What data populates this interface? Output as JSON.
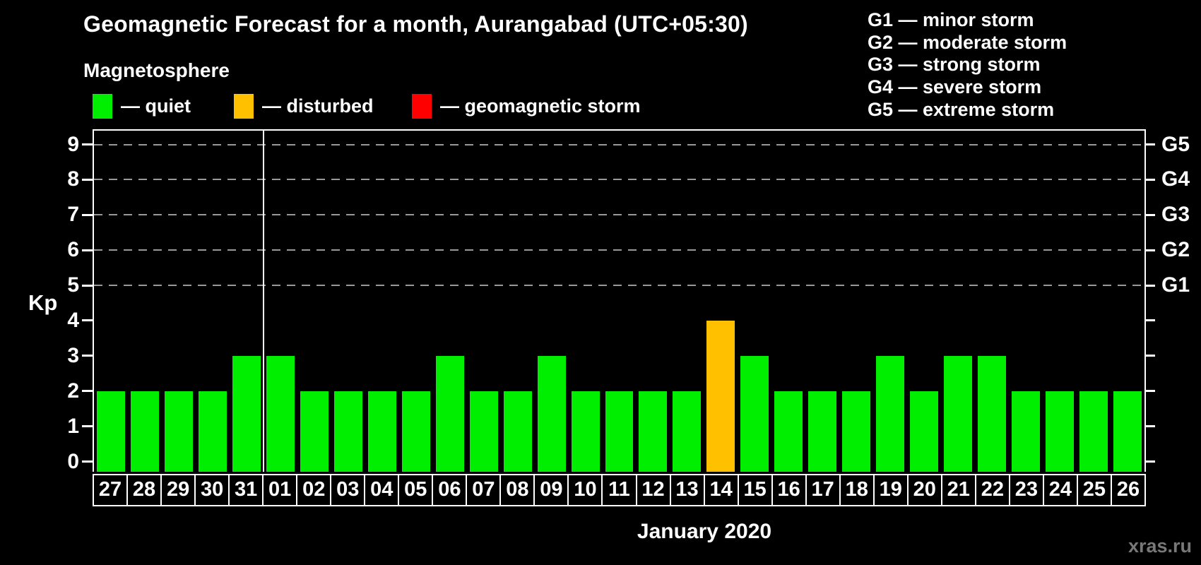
{
  "title": "Geomagnetic Forecast for a month, Aurangabad (UTC+05:30)",
  "subtitle": "Magnetosphere",
  "legend": [
    {
      "label": "— quiet",
      "status": "quiet",
      "color": "#00ee00"
    },
    {
      "label": "— disturbed",
      "status": "disturbed",
      "color": "#ffc000"
    },
    {
      "label": "— geomagnetic storm",
      "status": "storm",
      "color": "#ff0000"
    }
  ],
  "g_legend": [
    "G1 — minor storm",
    "G2 — moderate storm",
    "G3 — strong storm",
    "G4 — severe storm",
    "G5 — extreme storm"
  ],
  "axis": {
    "kp_label": "Kp"
  },
  "x_label": "January 2020",
  "watermark": "xras.ru",
  "chart_data": {
    "type": "bar",
    "title": "Geomagnetic Forecast for a month, Aurangabad (UTC+05:30)",
    "ylabel": "Kp",
    "xlabel": "January 2020",
    "ylim": [
      0,
      9
    ],
    "y_ticks": [
      0,
      1,
      2,
      3,
      4,
      5,
      6,
      7,
      8,
      9
    ],
    "gridlines_at": [
      5,
      6,
      7,
      8,
      9
    ],
    "grid": "dashed, storm levels only",
    "legend_position": "top",
    "categories": [
      "27",
      "28",
      "29",
      "30",
      "31",
      "01",
      "02",
      "03",
      "04",
      "05",
      "06",
      "07",
      "08",
      "09",
      "10",
      "11",
      "12",
      "13",
      "14",
      "15",
      "16",
      "17",
      "18",
      "19",
      "20",
      "21",
      "22",
      "23",
      "24",
      "25",
      "26"
    ],
    "values": [
      2,
      2,
      2,
      2,
      3,
      3,
      2,
      2,
      2,
      2,
      3,
      2,
      2,
      3,
      2,
      2,
      2,
      2,
      4,
      3,
      2,
      2,
      2,
      3,
      2,
      3,
      3,
      2,
      2,
      2,
      2
    ],
    "statuses": [
      "quiet",
      "quiet",
      "quiet",
      "quiet",
      "quiet",
      "quiet",
      "quiet",
      "quiet",
      "quiet",
      "quiet",
      "quiet",
      "quiet",
      "quiet",
      "quiet",
      "quiet",
      "quiet",
      "quiet",
      "quiet",
      "disturbed",
      "quiet",
      "quiet",
      "quiet",
      "quiet",
      "quiet",
      "quiet",
      "quiet",
      "quiet",
      "quiet",
      "quiet",
      "quiet",
      "quiet"
    ],
    "status_colors": {
      "quiet": "#00ee00",
      "disturbed": "#ffc000",
      "storm": "#ff0000"
    },
    "right_axis_labels": {
      "5": "G1",
      "6": "G2",
      "7": "G3",
      "8": "G4",
      "9": "G5"
    },
    "month_divider_after_index": 4
  }
}
